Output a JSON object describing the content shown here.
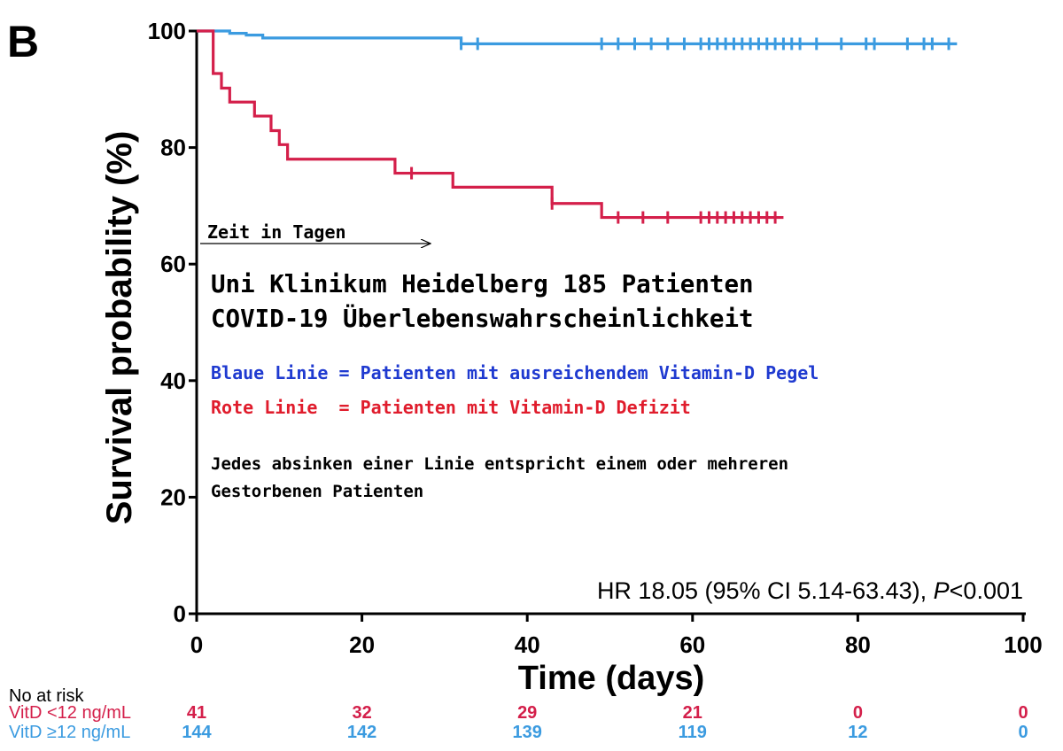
{
  "panel_label": "B",
  "colors": {
    "red": "#d41f4a",
    "blue": "#3b9be0",
    "anno_blue": "#1f3ad0",
    "anno_red": "#e01c2c",
    "axis": "#000000"
  },
  "annotations": {
    "arrow_text": "Zeit in Tagen",
    "title_line1": "Uni Klinikum Heidelberg 185 Patienten",
    "title_line2": "COVID-19 Überlebenswahrscheinlichkeit",
    "blue_note": "Blaue Linie = Patienten mit ausreichendem Vitamin-D Pegel",
    "red_note": "Rote Linie  = Patienten mit Vitamin-D Defizit",
    "note_line1": "Jedes absinken einer Linie entspricht einem oder mehreren",
    "note_line2": "Gestorbenen Patienten",
    "hr_prefix": "HR 18.05 (95% CI 5.14-63.43), ",
    "hr_p": "P",
    "hr_suffix": "<0.001"
  },
  "risk_table": {
    "header": "No at risk",
    "times": [
      0,
      20,
      40,
      60,
      80,
      100
    ],
    "rows": [
      {
        "label": "VitD <12 ng/mL",
        "color": "red",
        "values": [
          "41",
          "32",
          "29",
          "21",
          "0",
          "0"
        ]
      },
      {
        "label": "VitD ≥12 ng/mL",
        "color": "blue",
        "values": [
          "144",
          "142",
          "139",
          "119",
          "12",
          "0"
        ]
      }
    ]
  },
  "chart_data": {
    "type": "line",
    "subtype": "kaplan-meier step",
    "xlabel": "Time (days)",
    "ylabel": "Survival probability (%)",
    "xlim": [
      0,
      100
    ],
    "ylim": [
      0,
      100
    ],
    "xticks": [
      0,
      20,
      40,
      60,
      80,
      100
    ],
    "yticks": [
      0,
      20,
      40,
      60,
      80,
      100
    ],
    "grid": false,
    "series": [
      {
        "color": "blue",
        "steps": [
          [
            0,
            100
          ],
          [
            4,
            99.6
          ],
          [
            6,
            99.3
          ],
          [
            8,
            98.8
          ],
          [
            32,
            97.8
          ],
          [
            92,
            97.8
          ]
        ],
        "censored": [
          32,
          34,
          49,
          51,
          53,
          55,
          57,
          59,
          61,
          62,
          63,
          64,
          65,
          66,
          67,
          68,
          69,
          70,
          71,
          72,
          73,
          75,
          78,
          81,
          82,
          86,
          88,
          89,
          91
        ]
      },
      {
        "color": "red",
        "steps": [
          [
            0,
            100
          ],
          [
            2,
            92.7
          ],
          [
            3,
            90.2
          ],
          [
            4,
            87.8
          ],
          [
            7,
            85.4
          ],
          [
            9,
            82.9
          ],
          [
            10,
            80.5
          ],
          [
            11,
            78.0
          ],
          [
            24,
            75.6
          ],
          [
            31,
            73.2
          ],
          [
            43,
            70.4
          ],
          [
            49,
            68.0
          ],
          [
            71,
            68.0
          ]
        ],
        "censored": [
          26,
          43,
          51,
          54,
          57,
          61,
          62,
          63,
          64,
          65,
          66,
          67,
          68,
          69,
          70
        ]
      }
    ]
  }
}
